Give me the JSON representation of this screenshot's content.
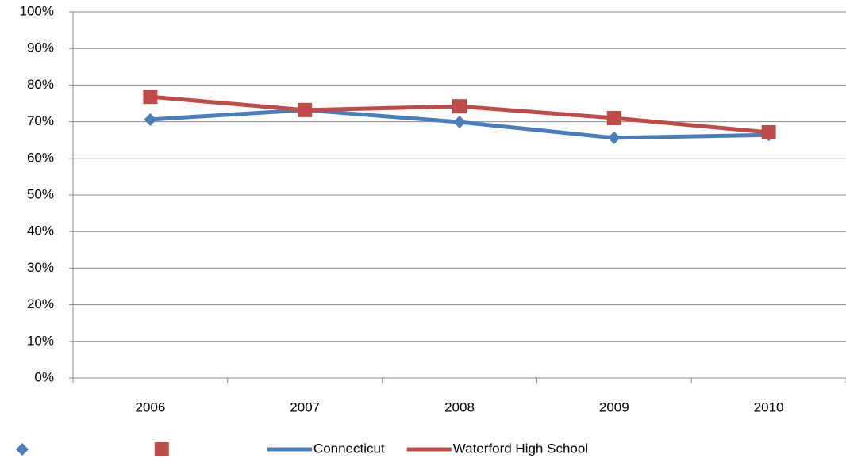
{
  "chart_data": {
    "type": "line",
    "categories": [
      "2006",
      "2007",
      "2008",
      "2009",
      "2010"
    ],
    "series": [
      {
        "name": "Connecticut",
        "color": "#4a7ebb",
        "marker": "diamond",
        "values": [
          70.6,
          73.2,
          69.9,
          65.6,
          66.4
        ]
      },
      {
        "name": "Waterford High School",
        "color": "#be4b48",
        "marker": "square",
        "values": [
          76.8,
          73.2,
          74.2,
          71.0,
          67.1
        ]
      }
    ],
    "ylim": [
      0,
      100
    ],
    "yticks": [
      {
        "value": 0,
        "label": "0%"
      },
      {
        "value": 10,
        "label": "10%"
      },
      {
        "value": 20,
        "label": "20%"
      },
      {
        "value": 30,
        "label": "30%"
      },
      {
        "value": 40,
        "label": "40%"
      },
      {
        "value": 50,
        "label": "50%"
      },
      {
        "value": 60,
        "label": "60%"
      },
      {
        "value": 70,
        "label": "70%"
      },
      {
        "value": 80,
        "label": "80%"
      },
      {
        "value": 90,
        "label": "90%"
      },
      {
        "value": 100,
        "label": "100%"
      }
    ],
    "grid": true,
    "legend": "bottom"
  }
}
